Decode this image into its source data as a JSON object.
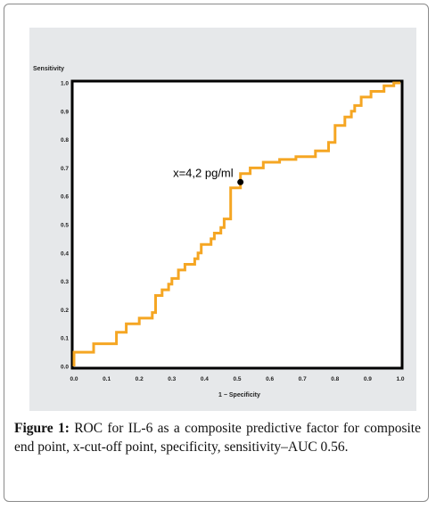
{
  "figure": {
    "caption_label": "Figure 1:",
    "caption_text": "ROC for IL-6 as a composite predictive factor for composite end point, x-cut-off point, specificity, sensitivity–AUC 0.56."
  },
  "colors": {
    "panel_bg": "#e6e8ea",
    "curve": "#f5a623",
    "axis": "#000000"
  },
  "chart_data": {
    "type": "line",
    "title": "",
    "xlabel": "1 − Specificity",
    "ylabel": "Sensitivity",
    "xlim": [
      0,
      1
    ],
    "ylim": [
      0,
      1
    ],
    "x_ticks": [
      "0.0",
      "0.1",
      "0.2",
      "0.3",
      "0.4",
      "0.5",
      "0.6",
      "0.7",
      "0.8",
      "0.9",
      "1.0"
    ],
    "y_ticks": [
      "0.0",
      "0.1",
      "0.2",
      "0.3",
      "0.4",
      "0.5",
      "0.6",
      "0.7",
      "0.8",
      "0.9",
      "1.0"
    ],
    "grid": false,
    "series": [
      {
        "x": [
          0.0,
          0.0,
          0.06,
          0.06,
          0.13,
          0.13,
          0.16,
          0.16,
          0.2,
          0.2,
          0.24,
          0.24,
          0.25,
          0.25,
          0.27,
          0.27,
          0.29,
          0.29,
          0.3,
          0.3,
          0.32,
          0.32,
          0.34,
          0.34,
          0.37,
          0.37,
          0.38,
          0.38,
          0.39,
          0.39,
          0.42,
          0.42,
          0.43,
          0.43,
          0.45,
          0.45,
          0.46,
          0.46,
          0.48,
          0.48,
          0.51,
          0.51,
          0.54,
          0.54,
          0.58,
          0.58,
          0.63,
          0.63,
          0.68,
          0.68,
          0.74,
          0.74,
          0.78,
          0.78,
          0.8,
          0.8,
          0.83,
          0.83,
          0.85,
          0.85,
          0.86,
          0.86,
          0.88,
          0.88,
          0.91,
          0.91,
          0.95,
          0.95,
          0.98,
          0.98,
          1.0
        ],
        "y": [
          0.0,
          0.05,
          0.05,
          0.08,
          0.08,
          0.12,
          0.12,
          0.15,
          0.15,
          0.17,
          0.17,
          0.19,
          0.19,
          0.25,
          0.25,
          0.27,
          0.27,
          0.29,
          0.29,
          0.31,
          0.31,
          0.34,
          0.34,
          0.36,
          0.36,
          0.38,
          0.38,
          0.4,
          0.4,
          0.43,
          0.43,
          0.45,
          0.45,
          0.47,
          0.47,
          0.49,
          0.49,
          0.52,
          0.52,
          0.63,
          0.63,
          0.68,
          0.68,
          0.7,
          0.7,
          0.72,
          0.72,
          0.73,
          0.73,
          0.74,
          0.74,
          0.76,
          0.76,
          0.79,
          0.79,
          0.85,
          0.85,
          0.88,
          0.88,
          0.9,
          0.9,
          0.92,
          0.92,
          0.95,
          0.95,
          0.97,
          0.97,
          0.99,
          0.99,
          1.0,
          1.0
        ]
      }
    ],
    "cutoff_point": {
      "x": 0.51,
      "y": 0.65,
      "label": "x=4,2 pg/ml"
    }
  }
}
